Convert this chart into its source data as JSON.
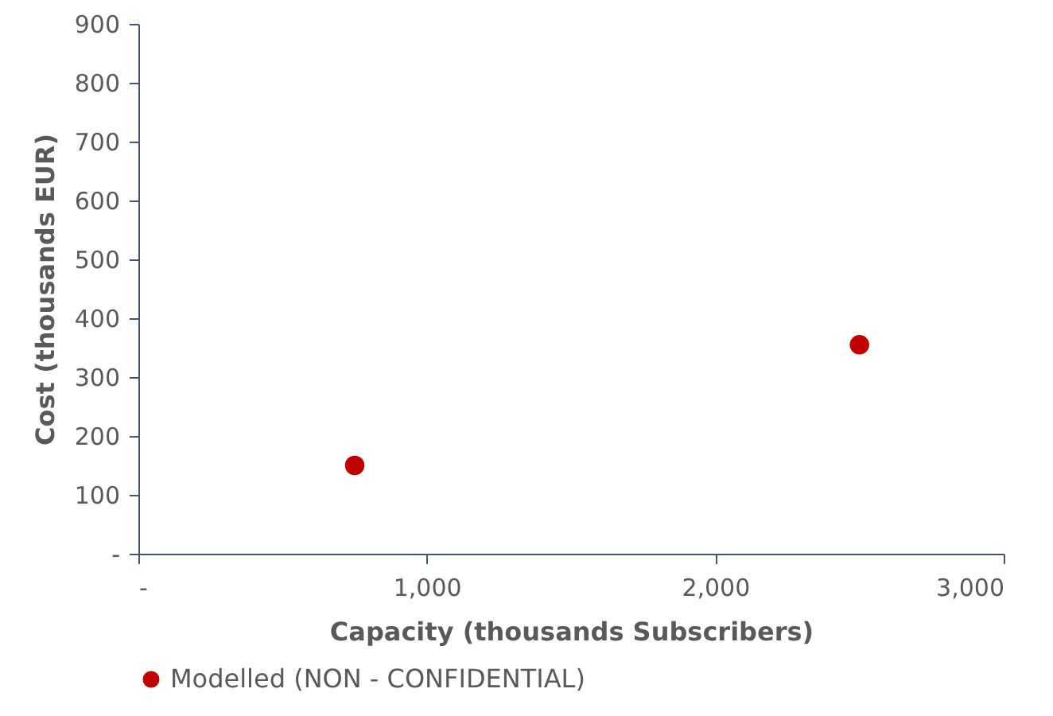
{
  "chart_data": {
    "type": "scatter",
    "xlabel": "Capacity (thousands Subscribers)",
    "ylabel": "Cost (thousands EUR)",
    "x": [
      750,
      2500
    ],
    "series": [
      {
        "name": "Modelled (NON - CONFIDENTIAL)",
        "color": "#c00000",
        "values": [
          150,
          355
        ]
      }
    ],
    "xlim": [
      0,
      3000
    ],
    "xticks": [
      {
        "value": 0,
        "label": "-"
      },
      {
        "value": 1000,
        "label": "1,000"
      },
      {
        "value": 2000,
        "label": "2,000"
      },
      {
        "value": 3000,
        "label": "3,000"
      }
    ],
    "ylim": [
      0,
      900
    ],
    "yticks": [
      {
        "value": 0,
        "label": "-"
      },
      100,
      200,
      300,
      400,
      500,
      600,
      700,
      800,
      900
    ],
    "grid": false,
    "legend": "bottom",
    "marker": "circle"
  }
}
